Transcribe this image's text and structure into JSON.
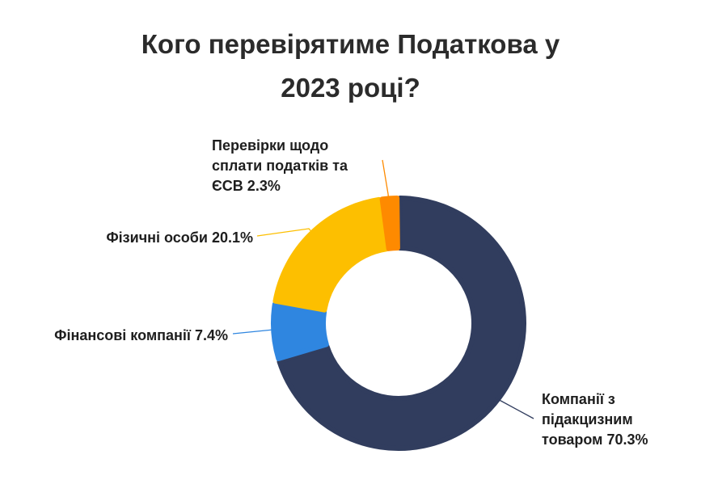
{
  "chart_data": {
    "type": "pie",
    "variant": "donut",
    "title_lines": [
      "Кого перевірятиме Податкова у",
      "2023 році?"
    ],
    "slices": [
      {
        "label_lines": [
          "Компанії з",
          "підакцизним",
          "товаром 70.3%"
        ],
        "value": 70.3,
        "color": "#313d5e"
      },
      {
        "label_lines": [
          "Фінансові компанії 7.4%"
        ],
        "value": 7.4,
        "color": "#2f86e0"
      },
      {
        "label_lines": [
          "Фізичні особи 20.1%"
        ],
        "value": 20.1,
        "color": "#fdbf00"
      },
      {
        "label_lines": [
          "Перевірки щодо",
          "сплати податків та",
          "ЄСВ 2.3%"
        ],
        "value": 2.3,
        "color": "#fe8a00"
      }
    ],
    "legend": "none"
  }
}
